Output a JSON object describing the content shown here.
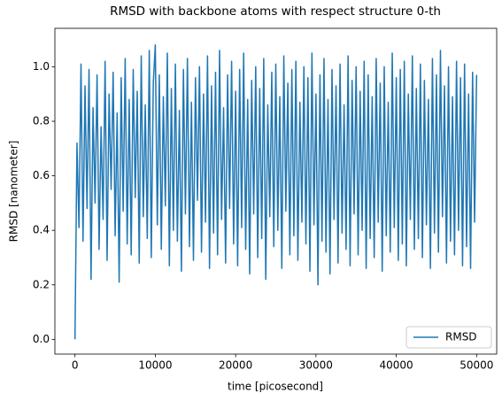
{
  "chart_data": {
    "type": "line",
    "title": "RMSD with backbone atoms with respect structure 0-th",
    "xlabel": "time [picosecond]",
    "ylabel": "RMSD [nanometer]",
    "legend": "lower right",
    "grid": false,
    "xlim": [
      -2500,
      52500
    ],
    "ylim": [
      -0.054,
      1.141
    ],
    "xticks": [
      0,
      10000,
      20000,
      30000,
      40000,
      50000
    ],
    "yticks": [
      {
        "value": 0,
        "label": "0.0"
      },
      0.2,
      0.4,
      0.6,
      0.8,
      {
        "value": 1,
        "label": "1.0"
      }
    ],
    "x": [
      0,
      250,
      500,
      750,
      1000,
      1250,
      1500,
      1750,
      2000,
      2250,
      2500,
      2750,
      3000,
      3250,
      3500,
      3750,
      4000,
      4250,
      4500,
      4750,
      5000,
      5250,
      5500,
      5750,
      6000,
      6250,
      6500,
      6750,
      7000,
      7250,
      7500,
      7750,
      8000,
      8250,
      8500,
      8750,
      9000,
      9250,
      9500,
      9750,
      10000,
      10250,
      10500,
      10750,
      11000,
      11250,
      11500,
      11750,
      12000,
      12250,
      12500,
      12750,
      13000,
      13250,
      13500,
      13750,
      14000,
      14250,
      14500,
      14750,
      15000,
      15250,
      15500,
      15750,
      16000,
      16250,
      16500,
      16750,
      17000,
      17250,
      17500,
      17750,
      18000,
      18250,
      18500,
      18750,
      19000,
      19250,
      19500,
      19750,
      20000,
      20250,
      20500,
      20750,
      21000,
      21250,
      21500,
      21750,
      22000,
      22250,
      22500,
      22750,
      23000,
      23250,
      23500,
      23750,
      24000,
      24250,
      24500,
      24750,
      25000,
      25250,
      25500,
      25750,
      26000,
      26250,
      26500,
      26750,
      27000,
      27250,
      27500,
      27750,
      28000,
      28250,
      28500,
      28750,
      29000,
      29250,
      29500,
      29750,
      30000,
      30250,
      30500,
      30750,
      31000,
      31250,
      31500,
      31750,
      32000,
      32250,
      32500,
      32750,
      33000,
      33250,
      33500,
      33750,
      34000,
      34250,
      34500,
      34750,
      35000,
      35250,
      35500,
      35750,
      36000,
      36250,
      36500,
      36750,
      37000,
      37250,
      37500,
      37750,
      38000,
      38250,
      38500,
      38750,
      39000,
      39250,
      39500,
      39750,
      40000,
      40250,
      40500,
      40750,
      41000,
      41250,
      41500,
      41750,
      42000,
      42250,
      42500,
      42750,
      43000,
      43250,
      43500,
      43750,
      44000,
      44250,
      44500,
      44750,
      45000,
      45250,
      45500,
      45750,
      46000,
      46250,
      46500,
      46750,
      47000,
      47250,
      47500,
      47750,
      48000,
      48250,
      48500,
      48750,
      49000,
      49250,
      49500,
      49750,
      50000
    ],
    "series": [
      {
        "name": "RMSD",
        "color": "#1f77b4",
        "values": [
          0.0,
          0.72,
          0.41,
          1.01,
          0.36,
          0.93,
          0.48,
          0.99,
          0.22,
          0.85,
          0.5,
          0.97,
          0.33,
          0.78,
          0.44,
          1.02,
          0.29,
          0.9,
          0.55,
          0.98,
          0.38,
          0.83,
          0.21,
          0.96,
          0.47,
          1.03,
          0.35,
          0.88,
          0.31,
          0.99,
          0.52,
          0.91,
          0.28,
          1.04,
          0.45,
          0.86,
          0.37,
          1.06,
          0.3,
          0.94,
          1.08,
          0.42,
          0.97,
          0.33,
          0.89,
          0.49,
          1.05,
          0.27,
          0.92,
          0.4,
          1.01,
          0.36,
          0.84,
          0.25,
          0.99,
          0.46,
          1.03,
          0.34,
          0.87,
          0.29,
          0.96,
          0.51,
          1.0,
          0.32,
          0.9,
          0.43,
          1.04,
          0.26,
          0.93,
          0.39,
          0.98,
          0.31,
          1.06,
          0.44,
          0.85,
          0.28,
          0.97,
          0.48,
          1.02,
          0.35,
          0.91,
          0.27,
          0.99,
          0.41,
          1.05,
          0.33,
          0.88,
          0.24,
          0.95,
          0.46,
          1.0,
          0.3,
          0.92,
          0.37,
          1.03,
          0.22,
          0.86,
          0.45,
          0.98,
          0.34,
          1.01,
          0.4,
          0.89,
          0.26,
          1.04,
          0.47,
          0.94,
          0.31,
          0.99,
          0.38,
          1.02,
          0.29,
          0.87,
          0.43,
          1.0,
          0.35,
          0.96,
          0.25,
          1.05,
          0.42,
          0.9,
          0.2,
          0.97,
          0.36,
          1.03,
          0.32,
          0.88,
          0.24,
          0.99,
          0.44,
          0.93,
          0.28,
          1.01,
          0.39,
          0.86,
          0.33,
          1.04,
          0.27,
          0.95,
          0.46,
          1.0,
          0.31,
          0.91,
          0.4,
          1.02,
          0.26,
          0.97,
          0.37,
          0.89,
          0.3,
          1.03,
          0.43,
          0.94,
          0.25,
          1.0,
          0.38,
          0.87,
          0.32,
          1.05,
          0.41,
          0.96,
          0.29,
          0.99,
          0.35,
          1.02,
          0.27,
          0.9,
          0.44,
          1.04,
          0.33,
          0.92,
          0.37,
          1.01,
          0.3,
          0.95,
          0.42,
          0.88,
          0.26,
          1.03,
          0.39,
          0.97,
          0.32,
          1.06,
          0.45,
          0.93,
          0.28,
          1.0,
          0.36,
          0.89,
          0.31,
          1.02,
          0.4,
          0.96,
          0.27,
          1.01,
          0.34,
          0.9,
          0.26,
          0.98,
          0.43,
          0.97
        ]
      }
    ]
  }
}
